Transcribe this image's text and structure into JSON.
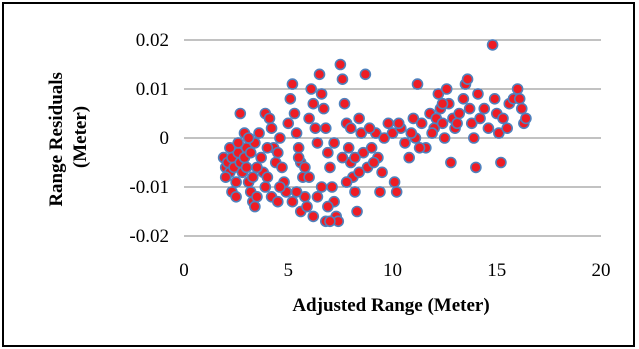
{
  "chart_data": {
    "type": "scatter",
    "title": "",
    "xlabel": "Adjusted Range (Meter)",
    "ylabel_lines": [
      "Range Residuals",
      "(Meter)"
    ],
    "xlim": [
      0,
      20
    ],
    "ylim": [
      -0.02,
      0.02
    ],
    "x_ticks": [
      0,
      5,
      10,
      15,
      20
    ],
    "y_ticks": [
      -0.02,
      -0.01,
      0,
      0.01,
      0.02
    ],
    "x_tick_labels": [
      "0",
      "5",
      "10",
      "15",
      "20"
    ],
    "y_tick_labels": [
      "-0.02",
      "-0.01",
      "0",
      "0.01",
      "0.02"
    ],
    "grid": {
      "horizontal": true,
      "vertical": false
    },
    "legend": "none",
    "marker_fill": "#ee1c24",
    "marker_edge": "#4f81bd",
    "series": [
      {
        "points": [
          [
            1.9,
            -0.004
          ],
          [
            2.0,
            -0.006
          ],
          [
            2.1,
            -0.005
          ],
          [
            2.2,
            -0.007
          ],
          [
            2.0,
            -0.008
          ],
          [
            2.3,
            -0.004
          ],
          [
            2.4,
            -0.006
          ],
          [
            2.5,
            -0.009
          ],
          [
            2.6,
            -0.003
          ],
          [
            2.7,
            -0.005
          ],
          [
            2.3,
            -0.011
          ],
          [
            2.5,
            -0.012
          ],
          [
            2.8,
            -0.007
          ],
          [
            2.9,
            -0.004
          ],
          [
            3.0,
            -0.006
          ],
          [
            3.1,
            -0.009
          ],
          [
            3.2,
            -0.011
          ],
          [
            3.3,
            -0.013
          ],
          [
            3.4,
            -0.014
          ],
          [
            3.5,
            -0.012
          ],
          [
            2.7,
            0.005
          ],
          [
            2.9,
            0.001
          ],
          [
            3.0,
            -0.002
          ],
          [
            3.2,
            -0.003
          ],
          [
            3.4,
            -0.001
          ],
          [
            3.6,
            0.001
          ],
          [
            3.7,
            -0.004
          ],
          [
            3.8,
            -0.007
          ],
          [
            3.9,
            -0.01
          ],
          [
            4.0,
            -0.008
          ],
          [
            3.9,
            0.005
          ],
          [
            4.1,
            0.004
          ],
          [
            4.2,
            0.002
          ],
          [
            4.3,
            -0.002
          ],
          [
            4.4,
            -0.005
          ],
          [
            4.5,
            -0.003
          ],
          [
            4.6,
            0.0
          ],
          [
            4.7,
            -0.006
          ],
          [
            4.8,
            -0.009
          ],
          [
            4.9,
            -0.011
          ],
          [
            5.0,
            0.003
          ],
          [
            5.1,
            0.008
          ],
          [
            5.2,
            0.011
          ],
          [
            5.3,
            0.005
          ],
          [
            5.4,
            0.001
          ],
          [
            5.5,
            -0.002
          ],
          [
            5.6,
            -0.005
          ],
          [
            5.7,
            -0.008
          ],
          [
            5.8,
            -0.012
          ],
          [
            5.6,
            -0.015
          ],
          [
            5.9,
            -0.014
          ],
          [
            6.0,
            0.004
          ],
          [
            6.1,
            0.01
          ],
          [
            6.2,
            0.007
          ],
          [
            6.3,
            0.002
          ],
          [
            6.4,
            -0.001
          ],
          [
            6.5,
            0.013
          ],
          [
            6.6,
            0.009
          ],
          [
            6.7,
            0.006
          ],
          [
            6.8,
            0.002
          ],
          [
            6.9,
            -0.003
          ],
          [
            7.0,
            -0.006
          ],
          [
            7.1,
            -0.01
          ],
          [
            7.2,
            -0.013
          ],
          [
            7.3,
            -0.016
          ],
          [
            7.4,
            -0.017
          ],
          [
            7.5,
            0.015
          ],
          [
            7.6,
            0.012
          ],
          [
            7.7,
            0.007
          ],
          [
            7.8,
            0.003
          ],
          [
            7.9,
            -0.002
          ],
          [
            8.0,
            -0.005
          ],
          [
            8.1,
            -0.008
          ],
          [
            8.2,
            -0.011
          ],
          [
            8.3,
            -0.015
          ],
          [
            8.4,
            0.004
          ],
          [
            8.5,
            0.001
          ],
          [
            8.6,
            -0.003
          ],
          [
            8.7,
            0.013
          ],
          [
            8.8,
            -0.006
          ],
          [
            6.2,
            -0.016
          ],
          [
            6.8,
            -0.017
          ],
          [
            7.0,
            -0.017
          ],
          [
            5.5,
            -0.004
          ],
          [
            4.0,
            -0.002
          ],
          [
            3.5,
            -0.006
          ],
          [
            6.0,
            -0.008
          ],
          [
            6.6,
            -0.01
          ],
          [
            7.8,
            -0.009
          ],
          [
            8.2,
            -0.004
          ],
          [
            9.0,
            -0.002
          ],
          [
            9.2,
            0.001
          ],
          [
            9.3,
            -0.004
          ],
          [
            9.5,
            -0.007
          ],
          [
            9.4,
            -0.011
          ],
          [
            9.6,
            0.0
          ],
          [
            9.8,
            0.003
          ],
          [
            10.0,
            0.001
          ],
          [
            10.1,
            -0.009
          ],
          [
            10.2,
            -0.011
          ],
          [
            10.4,
            0.002
          ],
          [
            10.6,
            -0.001
          ],
          [
            10.8,
            -0.004
          ],
          [
            11.0,
            0.004
          ],
          [
            11.1,
            0.0
          ],
          [
            11.2,
            0.011
          ],
          [
            11.4,
            0.003
          ],
          [
            11.6,
            -0.002
          ],
          [
            11.8,
            0.005
          ],
          [
            12.0,
            0.002
          ],
          [
            12.1,
            0.004
          ],
          [
            12.2,
            0.009
          ],
          [
            12.3,
            0.006
          ],
          [
            12.4,
            0.003
          ],
          [
            12.5,
            0.0
          ],
          [
            12.6,
            0.01
          ],
          [
            12.7,
            0.007
          ],
          [
            12.8,
            -0.005
          ],
          [
            12.9,
            0.004
          ],
          [
            13.0,
            0.002
          ],
          [
            13.2,
            0.005
          ],
          [
            13.4,
            0.008
          ],
          [
            13.5,
            0.011
          ],
          [
            13.6,
            0.012
          ],
          [
            13.7,
            0.006
          ],
          [
            13.8,
            0.003
          ],
          [
            13.9,
            0.0
          ],
          [
            14.0,
            -0.006
          ],
          [
            14.1,
            0.009
          ],
          [
            14.2,
            0.004
          ],
          [
            14.4,
            0.006
          ],
          [
            14.6,
            0.002
          ],
          [
            14.8,
            0.019
          ],
          [
            14.9,
            0.008
          ],
          [
            15.0,
            0.005
          ],
          [
            15.1,
            0.001
          ],
          [
            15.2,
            -0.005
          ],
          [
            15.3,
            0.004
          ],
          [
            15.5,
            0.002
          ],
          [
            15.6,
            0.007
          ],
          [
            15.8,
            0.008
          ],
          [
            16.0,
            0.01
          ],
          [
            16.1,
            0.008
          ],
          [
            16.2,
            0.006
          ],
          [
            16.3,
            0.003
          ],
          [
            16.4,
            0.004
          ],
          [
            2.2,
            -0.002
          ],
          [
            2.6,
            -0.001
          ],
          [
            3.1,
            0.0
          ],
          [
            3.3,
            -0.008
          ],
          [
            4.2,
            -0.012
          ],
          [
            4.5,
            -0.013
          ],
          [
            4.6,
            -0.01
          ],
          [
            5.2,
            -0.013
          ],
          [
            5.4,
            -0.011
          ],
          [
            5.8,
            -0.006
          ],
          [
            6.4,
            -0.012
          ],
          [
            6.9,
            -0.014
          ],
          [
            7.2,
            -0.001
          ],
          [
            7.6,
            -0.004
          ],
          [
            8.0,
            0.002
          ],
          [
            8.4,
            -0.007
          ],
          [
            8.9,
            0.002
          ],
          [
            9.1,
            -0.005
          ],
          [
            10.3,
            0.003
          ],
          [
            10.9,
            0.001
          ],
          [
            11.3,
            -0.002
          ],
          [
            11.9,
            0.001
          ],
          [
            12.4,
            0.007
          ],
          [
            13.1,
            0.003
          ]
        ]
      }
    ]
  }
}
